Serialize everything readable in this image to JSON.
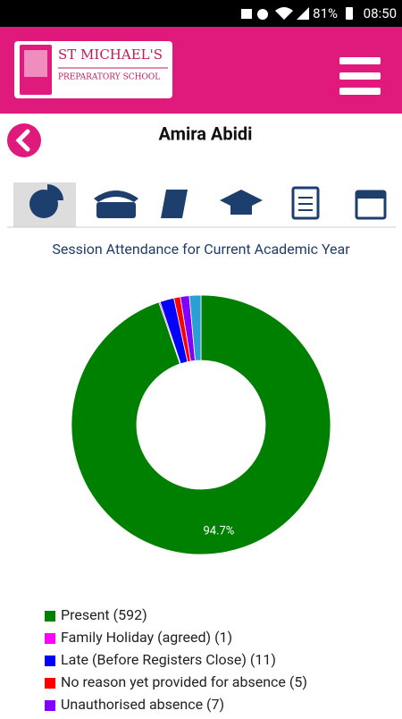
{
  "status_bar": {
    "battery": "81%",
    "time": "08:50"
  },
  "header": {
    "school_name": "ST MICHAEL'S",
    "school_subtitle": "PREPARATORY SCHOOL"
  },
  "student_name": "Amira Abidi",
  "chart_data": {
    "type": "donut",
    "title": "Session Attendance for Current Academic Year",
    "categories": [
      "Present (592)",
      "Family Holiday (agreed) (1)",
      "Late (Before Registers Close) (11)",
      "No reason yet provided for absence (5)",
      "Unauthorised absence (7)",
      null
    ],
    "values": [
      592,
      1,
      11,
      5,
      7,
      9
    ],
    "colors": [
      "#008000",
      "#ff00ff",
      "#0000ff",
      "#ff0000",
      "#8000ff",
      "#2a9fd6"
    ],
    "value_labels": [
      "94.7%",
      null,
      null,
      null,
      null,
      null
    ]
  }
}
